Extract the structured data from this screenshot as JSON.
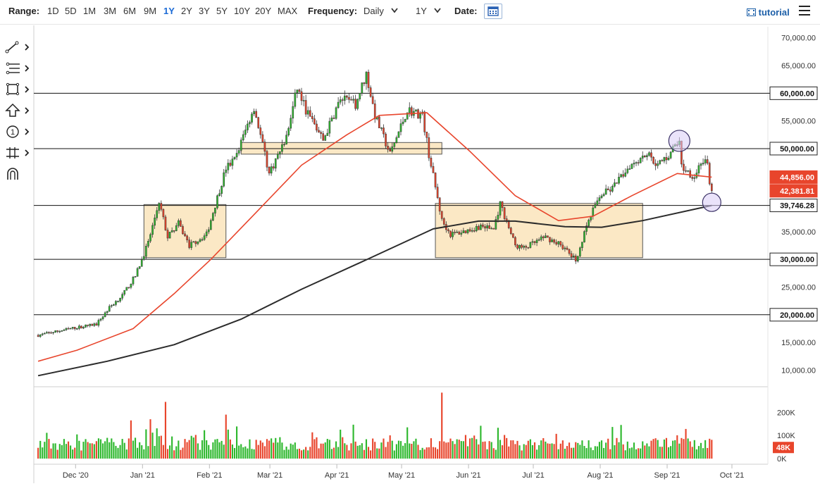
{
  "toolbar": {
    "range_label": "Range:",
    "ranges": [
      "1D",
      "5D",
      "1M",
      "3M",
      "6M",
      "9M",
      "1Y",
      "2Y",
      "3Y",
      "5Y",
      "10Y",
      "20Y",
      "MAX"
    ],
    "active_range": "1Y",
    "frequency_label": "Frequency:",
    "frequency_value": "Daily",
    "period_value": "1Y",
    "date_label": "Date:",
    "tutorial_label": "tutorial"
  },
  "tools": [
    "trend-line-tool",
    "fib-retracement-tool",
    "rectangle-tool",
    "arrow-tool",
    "annotation-tool",
    "measure-tool",
    "magnet-tool"
  ],
  "colors": {
    "up": "#2eb82e",
    "down": "#e8452c",
    "ma50": "#e8452c",
    "ma200": "#2b2b2b",
    "zone_fill": "#fbe6bf",
    "circle": "#d9ccf5",
    "circle_stroke": "#3b3266"
  },
  "chart_data": {
    "type": "candlestick",
    "x_ticks": [
      "Dec '20",
      "Jan '21",
      "Feb '21",
      "Mar '21",
      "Apr '21",
      "May '21",
      "Jun '21",
      "Jul '21",
      "Aug '21",
      "Sep '21",
      "Oct '21"
    ],
    "y_ticks": [
      "70,000.00",
      "65,000.00",
      "60,000.00",
      "55,000.00",
      "50,000.00",
      "45,000.00",
      "40,000.00",
      "35,000.00",
      "30,000.00",
      "25,000.00",
      "20,000.00",
      "15,000.00",
      "10,000.00"
    ],
    "ylim": [
      7000,
      72000
    ],
    "horizontal_levels": [
      {
        "value": 60000,
        "label": "60,000.00"
      },
      {
        "value": 50000,
        "label": "50,000.00"
      },
      {
        "value": 39746.28,
        "label": "39,746.28"
      },
      {
        "value": 30000,
        "label": "30,000.00"
      },
      {
        "value": 20000,
        "label": "20,000.00"
      }
    ],
    "price_tags": [
      {
        "value": 44856,
        "label": "44,856.00",
        "color": "#e8452c"
      },
      {
        "value": 42381.81,
        "label": "42,381.81",
        "color": "#e8452c"
      }
    ],
    "anchors": [
      {
        "date": "2020-11-13",
        "close": 16300
      },
      {
        "date": "2020-11-28",
        "close": 17500
      },
      {
        "date": "2020-12-10",
        "close": 18300
      },
      {
        "date": "2020-12-16",
        "close": 21300
      },
      {
        "date": "2020-12-22",
        "close": 23500
      },
      {
        "date": "2020-12-28",
        "close": 27000
      },
      {
        "date": "2021-01-03",
        "close": 33000
      },
      {
        "date": "2021-01-08",
        "close": 40500
      },
      {
        "date": "2021-01-12",
        "close": 34000
      },
      {
        "date": "2021-01-17",
        "close": 36500
      },
      {
        "date": "2021-01-22",
        "close": 32500
      },
      {
        "date": "2021-01-30",
        "close": 34500
      },
      {
        "date": "2021-02-08",
        "close": 46500
      },
      {
        "date": "2021-02-12",
        "close": 48000
      },
      {
        "date": "2021-02-21",
        "close": 57500
      },
      {
        "date": "2021-02-28",
        "close": 45500
      },
      {
        "date": "2021-03-08",
        "close": 52000
      },
      {
        "date": "2021-03-13",
        "close": 61000
      },
      {
        "date": "2021-03-17",
        "close": 57000
      },
      {
        "date": "2021-03-25",
        "close": 51500
      },
      {
        "date": "2021-04-02",
        "close": 59000
      },
      {
        "date": "2021-04-09",
        "close": 58000
      },
      {
        "date": "2021-04-14",
        "close": 63500
      },
      {
        "date": "2021-04-18",
        "close": 56000
      },
      {
        "date": "2021-04-25",
        "close": 49000
      },
      {
        "date": "2021-05-03",
        "close": 57000
      },
      {
        "date": "2021-05-10",
        "close": 56000
      },
      {
        "date": "2021-05-13",
        "close": 49000
      },
      {
        "date": "2021-05-19",
        "close": 37000
      },
      {
        "date": "2021-05-23",
        "close": 34500
      },
      {
        "date": "2021-05-29",
        "close": 35000
      },
      {
        "date": "2021-06-06",
        "close": 36000
      },
      {
        "date": "2021-06-12",
        "close": 35500
      },
      {
        "date": "2021-06-15",
        "close": 40000
      },
      {
        "date": "2021-06-22",
        "close": 32500
      },
      {
        "date": "2021-06-26",
        "close": 32000
      },
      {
        "date": "2021-07-06",
        "close": 34000
      },
      {
        "date": "2021-07-13",
        "close": 32700
      },
      {
        "date": "2021-07-20",
        "close": 29800
      },
      {
        "date": "2021-07-26",
        "close": 37000
      },
      {
        "date": "2021-07-31",
        "close": 41500
      },
      {
        "date": "2021-08-06",
        "close": 42800
      },
      {
        "date": "2021-08-14",
        "close": 47000
      },
      {
        "date": "2021-08-22",
        "close": 49200
      },
      {
        "date": "2021-08-27",
        "close": 47000
      },
      {
        "date": "2021-09-01",
        "close": 48800
      },
      {
        "date": "2021-09-06",
        "close": 51700
      },
      {
        "date": "2021-09-07",
        "close": 46800
      },
      {
        "date": "2021-09-13",
        "close": 44900
      },
      {
        "date": "2021-09-16",
        "close": 47700
      },
      {
        "date": "2021-09-19",
        "close": 47200
      },
      {
        "date": "2021-09-20",
        "close": 43000
      },
      {
        "date": "2021-09-21",
        "close": 42381.81
      }
    ],
    "ma50": [
      {
        "date": "2020-11-13",
        "value": 11600
      },
      {
        "date": "2020-12-01",
        "value": 13600
      },
      {
        "date": "2020-12-27",
        "value": 17500
      },
      {
        "date": "2021-01-15",
        "value": 23800
      },
      {
        "date": "2021-02-01",
        "value": 30000
      },
      {
        "date": "2021-02-22",
        "value": 38500
      },
      {
        "date": "2021-03-15",
        "value": 47000
      },
      {
        "date": "2021-04-05",
        "value": 52500
      },
      {
        "date": "2021-04-20",
        "value": 56000
      },
      {
        "date": "2021-05-12",
        "value": 56500
      },
      {
        "date": "2021-06-01",
        "value": 49500
      },
      {
        "date": "2021-06-22",
        "value": 41500
      },
      {
        "date": "2021-07-12",
        "value": 37000
      },
      {
        "date": "2021-07-28",
        "value": 37800
      },
      {
        "date": "2021-08-15",
        "value": 41500
      },
      {
        "date": "2021-09-05",
        "value": 45500
      },
      {
        "date": "2021-09-21",
        "value": 44856
      }
    ],
    "ma200": [
      {
        "date": "2020-11-13",
        "value": 9000
      },
      {
        "date": "2020-12-15",
        "value": 11600
      },
      {
        "date": "2021-01-15",
        "value": 14600
      },
      {
        "date": "2021-02-15",
        "value": 19200
      },
      {
        "date": "2021-03-15",
        "value": 24600
      },
      {
        "date": "2021-04-15",
        "value": 30100
      },
      {
        "date": "2021-05-15",
        "value": 35500
      },
      {
        "date": "2021-06-05",
        "value": 36900
      },
      {
        "date": "2021-06-22",
        "value": 36900
      },
      {
        "date": "2021-07-15",
        "value": 35900
      },
      {
        "date": "2021-08-01",
        "value": 35800
      },
      {
        "date": "2021-08-20",
        "value": 37000
      },
      {
        "date": "2021-09-21",
        "value": 39746.28
      }
    ],
    "zones": [
      {
        "start": "2021-01-01",
        "end": "2021-02-08",
        "low": 30300,
        "high": 39900
      },
      {
        "start": "2021-02-15",
        "end": "2021-05-19",
        "low": 49000,
        "high": 51100
      },
      {
        "start": "2021-05-16",
        "end": "2021-08-20",
        "low": 30300,
        "high": 40100
      }
    ],
    "circles": [
      {
        "date": "2021-09-06",
        "value": 51400
      },
      {
        "date": "2021-09-21",
        "value": 40300
      }
    ],
    "volume": {
      "ticks": [
        "200K",
        "100K",
        "0K"
      ],
      "last_label": "48K",
      "max": 280000,
      "spikes": [
        {
          "date": "2021-01-11",
          "value": 245000
        },
        {
          "date": "2021-02-08",
          "value": 190000
        },
        {
          "date": "2021-05-19",
          "value": 285000
        },
        {
          "date": "2021-01-04",
          "value": 170000
        },
        {
          "date": "2020-12-26",
          "value": 165000
        }
      ]
    }
  }
}
